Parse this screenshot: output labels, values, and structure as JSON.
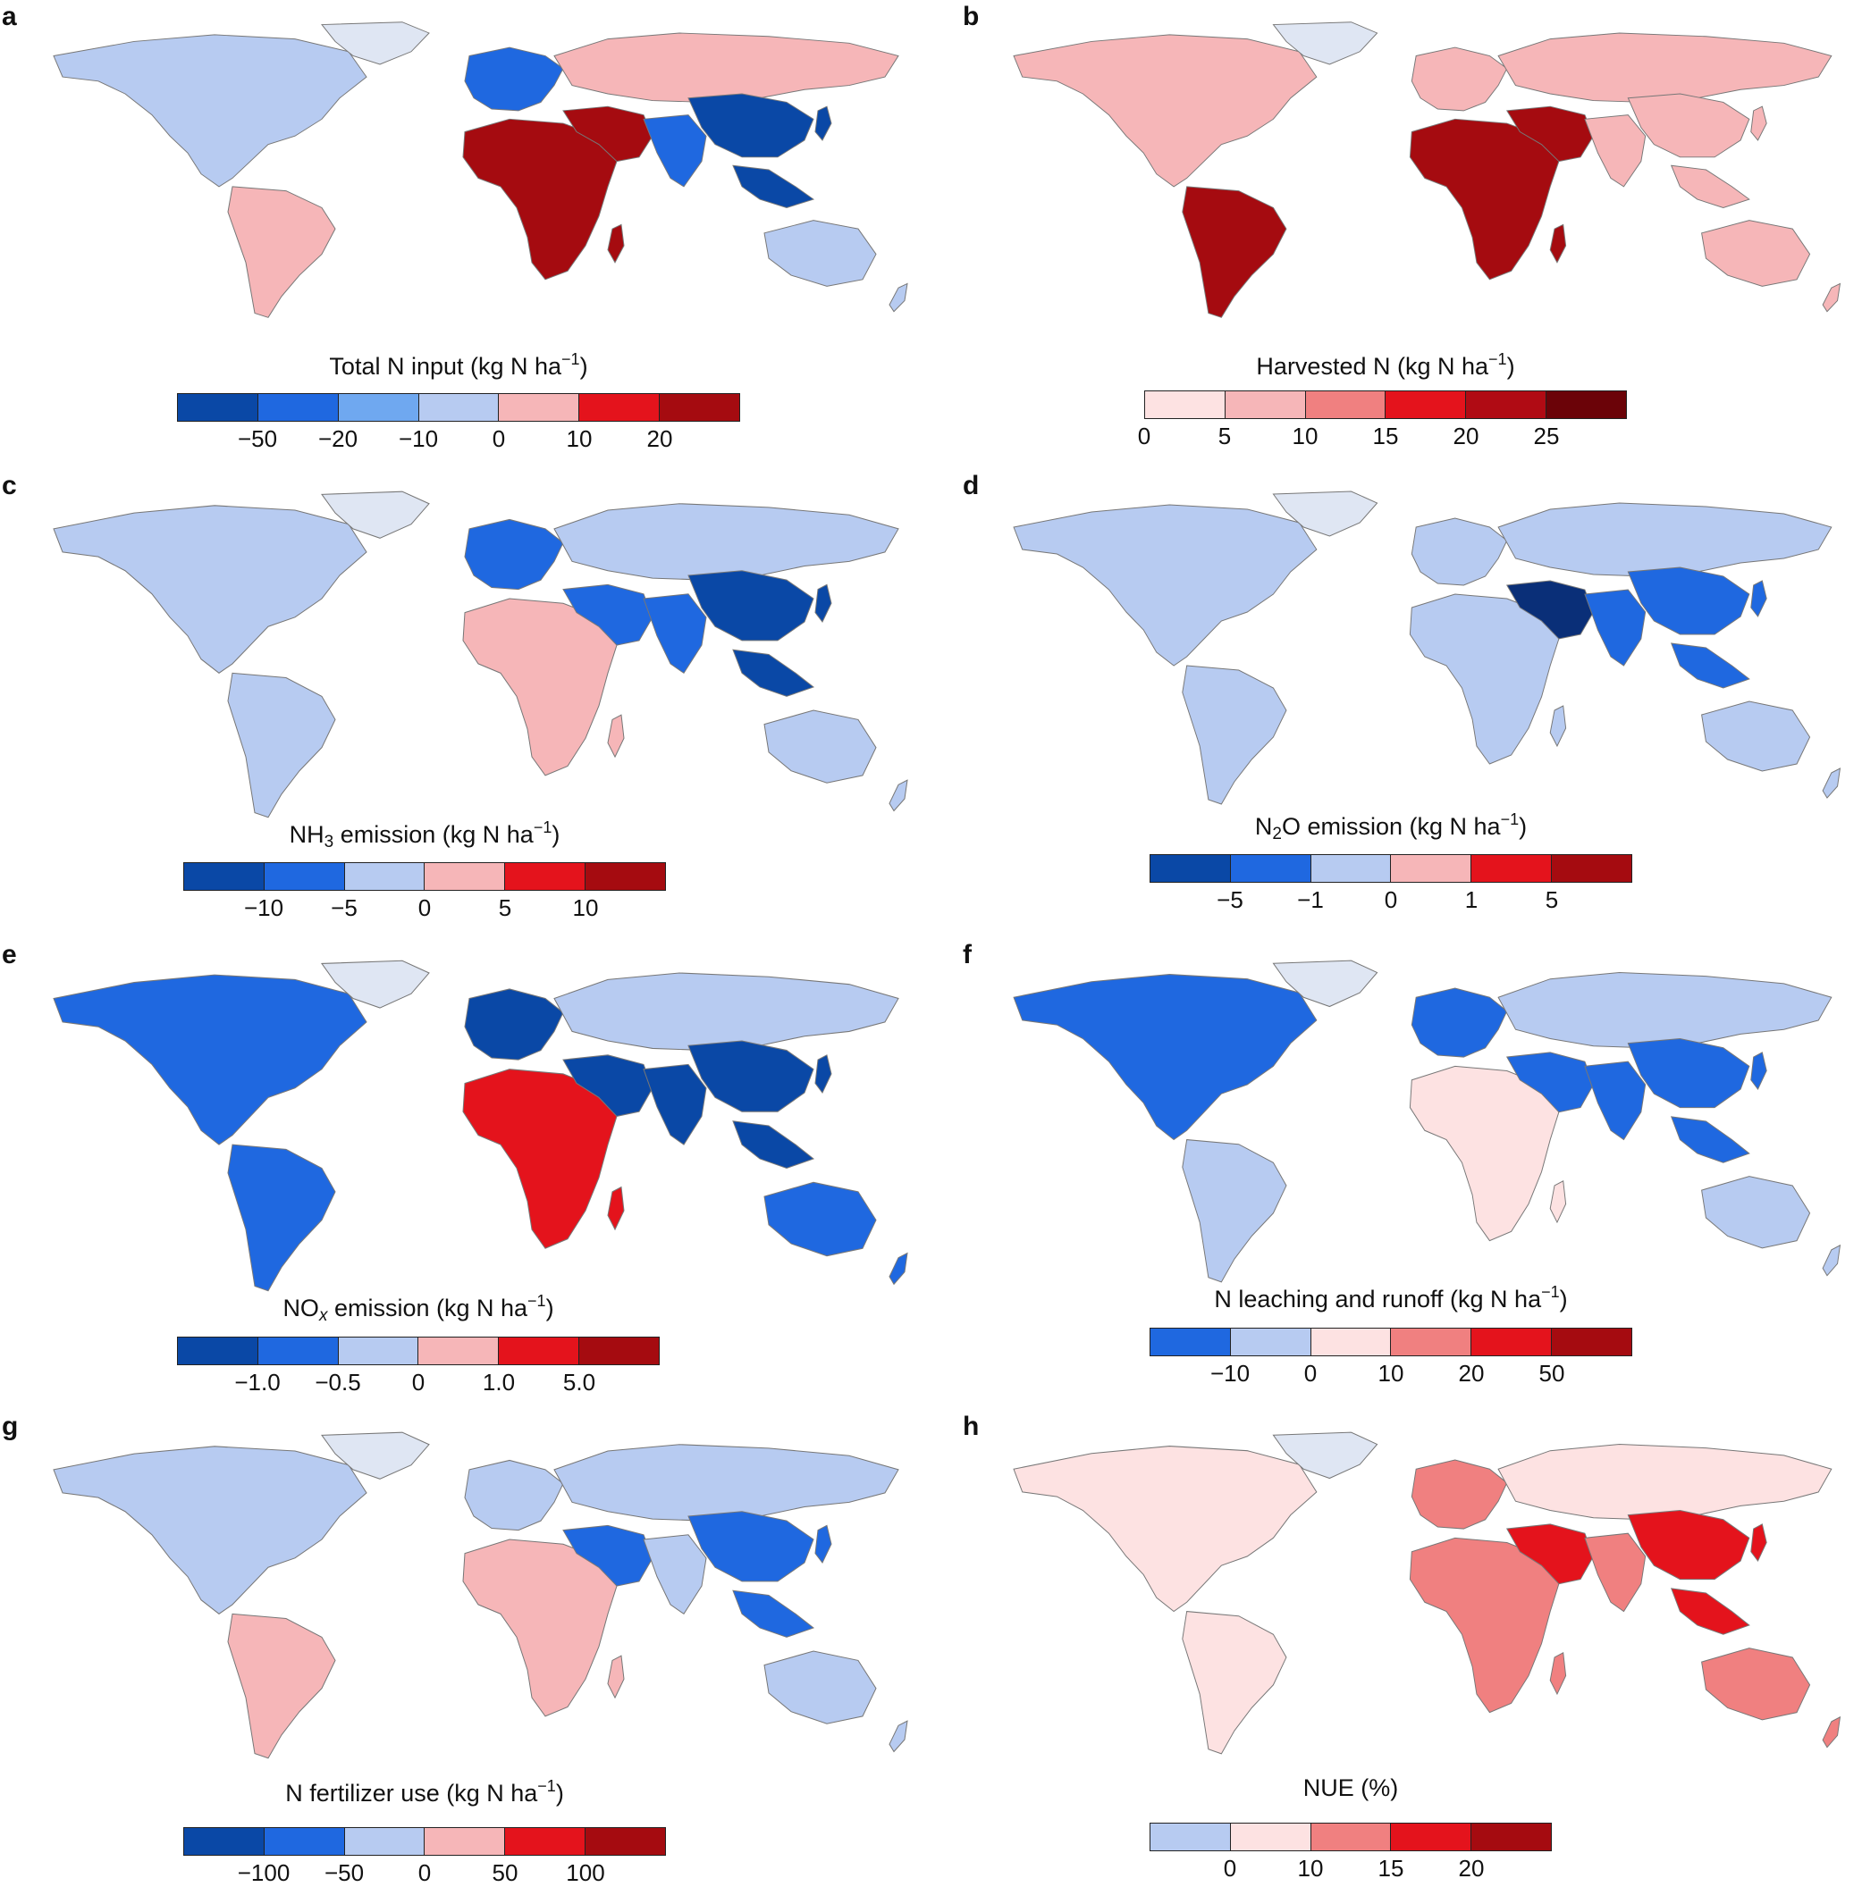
{
  "figure": {
    "panels": [
      {
        "letter": "a",
        "legend_title_parts": [
          "Total N input (kg N ha",
          "−1",
          ")"
        ],
        "colors": [
          "#0a48a6",
          "#1f68e0",
          "#6fa8f0",
          "#b7cbf1",
          "#f6b6b8",
          "#e4131c",
          "#a50b10"
        ],
        "ticks": [
          "−50",
          "−20",
          "−10",
          "0",
          "10",
          "20"
        ],
        "map_palette": {
          "americas_north": "#b7cbf1",
          "americas_south": "#f6b6b8",
          "europe": "#1f68e0",
          "russia": "#f6b6b8",
          "africa": "#a50b10",
          "asia_east": "#0a48a6",
          "asia_south": "#1f68e0",
          "australia": "#b7cbf1",
          "middle_east": "#a50b10"
        }
      },
      {
        "letter": "b",
        "legend_title_parts": [
          "Harvested N (kg N ha",
          "−1",
          ")"
        ],
        "colors": [
          "#fde2e2",
          "#f6b6b8",
          "#f08080",
          "#e4131c",
          "#b00b14",
          "#6b0308"
        ],
        "ticks": [
          "0",
          "5",
          "10",
          "15",
          "20",
          "25"
        ],
        "map_palette": {
          "americas_north": "#f6b6b8",
          "americas_south": "#a50b10",
          "europe": "#f6b6b8",
          "russia": "#f6b6b8",
          "africa": "#a50b10",
          "asia_east": "#f6b6b8",
          "asia_south": "#f6b6b8",
          "australia": "#f6b6b8",
          "middle_east": "#a50b10"
        }
      },
      {
        "letter": "c",
        "legend_title_parts": [
          "NH",
          "3",
          " emission (kg N ha",
          "−1",
          ")"
        ],
        "colors": [
          "#0a48a6",
          "#1f68e0",
          "#b7cbf1",
          "#f6b6b8",
          "#e4131c",
          "#a50b10"
        ],
        "ticks": [
          "−10",
          "−5",
          "0",
          "5",
          "10"
        ],
        "map_palette": {
          "americas_north": "#b7cbf1",
          "americas_south": "#b7cbf1",
          "europe": "#1f68e0",
          "russia": "#b7cbf1",
          "africa": "#f6b6b8",
          "asia_east": "#0a48a6",
          "asia_south": "#1f68e0",
          "australia": "#b7cbf1",
          "middle_east": "#1f68e0"
        }
      },
      {
        "letter": "d",
        "legend_title_parts": [
          "N",
          "2",
          "O emission (kg N ha",
          "−1",
          ")"
        ],
        "colors": [
          "#0a48a6",
          "#1f68e0",
          "#b7cbf1",
          "#f6b6b8",
          "#e4131c",
          "#a50b10"
        ],
        "ticks": [
          "−5",
          "−1",
          "0",
          "1",
          "5"
        ],
        "map_palette": {
          "americas_north": "#b7cbf1",
          "americas_south": "#b7cbf1",
          "europe": "#b7cbf1",
          "russia": "#b7cbf1",
          "africa": "#b7cbf1",
          "asia_east": "#1f68e0",
          "asia_south": "#1f68e0",
          "australia": "#b7cbf1",
          "middle_east": "#0a2f78"
        }
      },
      {
        "letter": "e",
        "legend_title_parts": [
          "NO",
          "x",
          " emission (kg N ha",
          "−1",
          ")"
        ],
        "colors": [
          "#0a48a6",
          "#1f68e0",
          "#b7cbf1",
          "#f6b6b8",
          "#e4131c",
          "#a50b10"
        ],
        "ticks": [
          "−1.0",
          "−0.5",
          "0",
          "1.0",
          "5.0"
        ],
        "map_palette": {
          "americas_north": "#1f68e0",
          "americas_south": "#1f68e0",
          "europe": "#0a48a6",
          "russia": "#b7cbf1",
          "africa": "#e4131c",
          "asia_east": "#0a48a6",
          "asia_south": "#0a48a6",
          "australia": "#1f68e0",
          "middle_east": "#0a48a6"
        }
      },
      {
        "letter": "f",
        "legend_title_parts": [
          "N leaching and runoff (kg N ha",
          "−1",
          ")"
        ],
        "colors": [
          "#1f68e0",
          "#b7cbf1",
          "#fde2e2",
          "#f08080",
          "#e4131c",
          "#a50b10"
        ],
        "ticks": [
          "−10",
          "0",
          "10",
          "20",
          "50"
        ],
        "map_palette": {
          "americas_north": "#1f68e0",
          "americas_south": "#b7cbf1",
          "europe": "#1f68e0",
          "russia": "#b7cbf1",
          "africa": "#fde2e2",
          "asia_east": "#1f68e0",
          "asia_south": "#1f68e0",
          "australia": "#b7cbf1",
          "middle_east": "#1f68e0"
        }
      },
      {
        "letter": "g",
        "legend_title_parts": [
          "N fertilizer use (kg N ha",
          "−1",
          ")"
        ],
        "colors": [
          "#0a48a6",
          "#1f68e0",
          "#b7cbf1",
          "#f6b6b8",
          "#e4131c",
          "#a50b10"
        ],
        "ticks": [
          "−100",
          "−50",
          "0",
          "50",
          "100"
        ],
        "map_palette": {
          "americas_north": "#b7cbf1",
          "americas_south": "#f6b6b8",
          "europe": "#b7cbf1",
          "russia": "#b7cbf1",
          "africa": "#f6b6b8",
          "asia_east": "#1f68e0",
          "asia_south": "#b7cbf1",
          "australia": "#b7cbf1",
          "middle_east": "#1f68e0"
        }
      },
      {
        "letter": "h",
        "legend_title_parts": [
          "NUE (%)"
        ],
        "colors": [
          "#b7cbf1",
          "#fde2e2",
          "#f08080",
          "#e4131c",
          "#a50b10"
        ],
        "ticks": [
          "0",
          "10",
          "15",
          "20"
        ],
        "map_palette": {
          "americas_north": "#fde2e2",
          "americas_south": "#fde2e2",
          "europe": "#f08080",
          "russia": "#fde2e2",
          "africa": "#f08080",
          "asia_east": "#e4131c",
          "asia_south": "#f08080",
          "australia": "#f08080",
          "middle_east": "#e4131c"
        }
      }
    ]
  }
}
